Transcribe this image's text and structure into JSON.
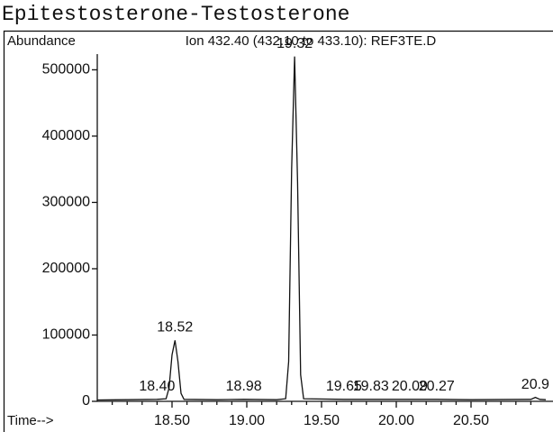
{
  "chart_data": {
    "type": "line",
    "title": "Epitestosterone-Testosterone",
    "subtitle": "Ion 432.40 (432.10 to 433.10): REF3TE.D",
    "y_label": "Abundance",
    "x_label": "Time-->",
    "x": [
      18.0,
      18.2,
      18.4,
      18.46,
      18.48,
      18.5,
      18.52,
      18.54,
      18.56,
      18.58,
      18.8,
      18.98,
      19.2,
      19.26,
      19.28,
      19.3,
      19.32,
      19.34,
      19.36,
      19.38,
      19.65,
      19.83,
      20.09,
      20.27,
      20.5,
      20.9,
      20.93,
      20.96,
      21.0
    ],
    "series": [
      {
        "color": "#111111",
        "values": [
          2000,
          2500,
          3000,
          4000,
          20000,
          70000,
          92000,
          60000,
          12000,
          3000,
          2500,
          3000,
          2500,
          4000,
          60000,
          350000,
          520000,
          330000,
          40000,
          4000,
          3000,
          3000,
          3000,
          3000,
          2500,
          3000,
          6000,
          3000,
          2500
        ]
      }
    ],
    "peaks": [
      {
        "x": 18.52,
        "y": 92000,
        "label": "18.52"
      },
      {
        "x": 19.32,
        "y": 520000,
        "label": "19.32"
      },
      {
        "x": 18.4,
        "y": 3000,
        "label": "18.40"
      },
      {
        "x": 18.98,
        "y": 3000,
        "label": "18.98"
      },
      {
        "x": 19.65,
        "y": 3000,
        "label": "19.65"
      },
      {
        "x": 19.83,
        "y": 3000,
        "label": "19.83"
      },
      {
        "x": 20.09,
        "y": 3000,
        "label": "20.09"
      },
      {
        "x": 20.27,
        "y": 3000,
        "label": "20.27"
      },
      {
        "x": 20.93,
        "y": 6000,
        "label": "20.9"
      }
    ],
    "xlim": [
      18.0,
      21.0
    ],
    "ylim": [
      0,
      540000
    ],
    "xticks": [
      {
        "value": 18.5,
        "label": "18.50"
      },
      {
        "value": 19.0,
        "label": "19.00"
      },
      {
        "value": 19.5,
        "label": "19.50"
      },
      {
        "value": 20.0,
        "label": "20.00"
      },
      {
        "value": 20.5,
        "label": "20.50"
      }
    ],
    "xminorticks": [
      18.1,
      18.2,
      18.3,
      18.4,
      18.6,
      18.7,
      18.8,
      18.9,
      19.1,
      19.2,
      19.3,
      19.4,
      19.6,
      19.7,
      19.8,
      19.9,
      20.1,
      20.2,
      20.3,
      20.4,
      20.6,
      20.7,
      20.8,
      20.9
    ],
    "yticks": [
      0,
      100000,
      200000,
      300000,
      400000,
      500000
    ]
  }
}
